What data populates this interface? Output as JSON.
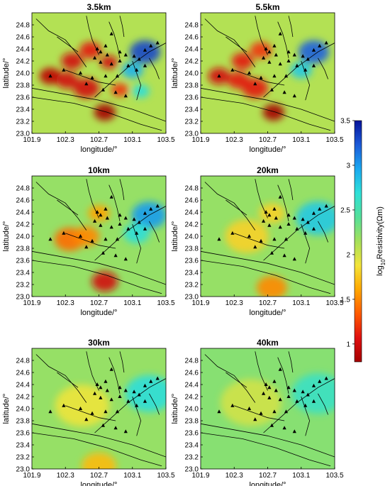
{
  "colormap": {
    "stops": [
      "#a50000",
      "#e01010",
      "#ff5a00",
      "#ffa700",
      "#f3e43a",
      "#a5e05a",
      "#55e09a",
      "#2ee0d8",
      "#1aa8f0",
      "#1c5ad8",
      "#06139a"
    ],
    "station_color": "#000000",
    "fault_color": "#000000"
  },
  "chart_data": [
    {
      "type": "heatmap",
      "title": "3.5km",
      "xlabel": "longitude/°",
      "ylabel": "latitude/°",
      "xlim": [
        101.9,
        103.5
      ],
      "ylim": [
        23.0,
        25.0
      ],
      "xticks": [
        "101.9",
        "102.3",
        "102.7",
        "103.1",
        "103.5"
      ],
      "yticks": [
        "23.0",
        "23.2",
        "23.4",
        "23.6",
        "23.8",
        "24.0",
        "24.2",
        "24.4",
        "24.6",
        "24.8"
      ],
      "background_value": 2.1,
      "anomalies": [
        {
          "lon": 102.12,
          "lat": 23.95,
          "value": 0.9,
          "radius": 0.1
        },
        {
          "lon": 102.32,
          "lat": 23.88,
          "value": 1.0,
          "radius": 0.1
        },
        {
          "lon": 102.55,
          "lat": 23.75,
          "value": 1.0,
          "radius": 0.12
        },
        {
          "lon": 102.38,
          "lat": 24.2,
          "value": 1.0,
          "radius": 0.1
        },
        {
          "lon": 102.6,
          "lat": 24.38,
          "value": 1.1,
          "radius": 0.1
        },
        {
          "lon": 102.82,
          "lat": 24.18,
          "value": 1.0,
          "radius": 0.08
        },
        {
          "lon": 102.77,
          "lat": 23.35,
          "value": 0.7,
          "radius": 0.1
        },
        {
          "lon": 102.95,
          "lat": 23.72,
          "value": 1.2,
          "radius": 0.08
        },
        {
          "lon": 103.25,
          "lat": 24.35,
          "value": 3.3,
          "radius": 0.14
        },
        {
          "lon": 103.1,
          "lat": 24.05,
          "value": 2.9,
          "radius": 0.1
        },
        {
          "lon": 103.2,
          "lat": 23.7,
          "value": 2.7,
          "radius": 0.08
        }
      ],
      "stations": [
        [
          102.85,
          24.65
        ],
        [
          102.78,
          24.45
        ],
        [
          102.68,
          24.4
        ],
        [
          102.72,
          24.35
        ],
        [
          102.8,
          24.3
        ],
        [
          102.95,
          24.35
        ],
        [
          103.02,
          24.3
        ],
        [
          103.12,
          24.28
        ],
        [
          103.18,
          24.23
        ],
        [
          103.25,
          24.38
        ],
        [
          103.32,
          24.45
        ],
        [
          103.4,
          24.5
        ],
        [
          102.65,
          24.25
        ],
        [
          102.72,
          24.18
        ],
        [
          102.85,
          24.15
        ],
        [
          102.95,
          24.2
        ],
        [
          103.05,
          24.12
        ],
        [
          103.15,
          24.05
        ],
        [
          103.25,
          24.12
        ],
        [
          102.28,
          24.05
        ],
        [
          102.12,
          23.95
        ],
        [
          102.48,
          24.0
        ],
        [
          102.62,
          23.92
        ],
        [
          102.78,
          23.95
        ],
        [
          102.92,
          23.95
        ],
        [
          102.55,
          23.82
        ],
        [
          102.75,
          23.72
        ],
        [
          102.9,
          23.68
        ],
        [
          103.02,
          23.62
        ]
      ]
    },
    {
      "type": "heatmap",
      "title": "5.5km",
      "xlabel": "longitude/°",
      "ylabel": "latitude/°",
      "xlim": [
        101.9,
        103.5
      ],
      "ylim": [
        23.0,
        25.0
      ],
      "xticks": [
        "101.9",
        "102.3",
        "102.7",
        "103.1",
        "103.5"
      ],
      "yticks": [
        "23.0",
        "23.2",
        "23.4",
        "23.6",
        "23.8",
        "24.0",
        "24.2",
        "24.4",
        "24.6",
        "24.8"
      ],
      "background_value": 2.1,
      "anomalies": [
        {
          "lon": 102.12,
          "lat": 23.95,
          "value": 1.0,
          "radius": 0.1
        },
        {
          "lon": 102.35,
          "lat": 23.88,
          "value": 1.1,
          "radius": 0.1
        },
        {
          "lon": 102.55,
          "lat": 23.75,
          "value": 1.1,
          "radius": 0.12
        },
        {
          "lon": 102.4,
          "lat": 24.2,
          "value": 1.1,
          "radius": 0.1
        },
        {
          "lon": 102.62,
          "lat": 24.38,
          "value": 1.2,
          "radius": 0.1
        },
        {
          "lon": 102.77,
          "lat": 23.35,
          "value": 0.8,
          "radius": 0.1
        },
        {
          "lon": 103.25,
          "lat": 24.35,
          "value": 3.2,
          "radius": 0.14
        },
        {
          "lon": 103.1,
          "lat": 24.05,
          "value": 2.8,
          "radius": 0.1
        }
      ],
      "stations": [
        [
          102.85,
          24.65
        ],
        [
          102.78,
          24.45
        ],
        [
          102.68,
          24.4
        ],
        [
          102.72,
          24.35
        ],
        [
          102.8,
          24.3
        ],
        [
          102.95,
          24.35
        ],
        [
          103.02,
          24.3
        ],
        [
          103.12,
          24.28
        ],
        [
          103.18,
          24.23
        ],
        [
          103.25,
          24.38
        ],
        [
          103.32,
          24.45
        ],
        [
          103.4,
          24.5
        ],
        [
          102.65,
          24.25
        ],
        [
          102.72,
          24.18
        ],
        [
          102.85,
          24.15
        ],
        [
          102.95,
          24.2
        ],
        [
          103.05,
          24.12
        ],
        [
          103.15,
          24.05
        ],
        [
          103.25,
          24.12
        ],
        [
          102.28,
          24.05
        ],
        [
          102.12,
          23.95
        ],
        [
          102.48,
          24.0
        ],
        [
          102.62,
          23.92
        ],
        [
          102.78,
          23.95
        ],
        [
          102.92,
          23.95
        ],
        [
          102.55,
          23.82
        ],
        [
          102.75,
          23.72
        ],
        [
          102.9,
          23.68
        ],
        [
          103.02,
          23.62
        ]
      ]
    },
    {
      "type": "heatmap",
      "title": "10km",
      "xlabel": "longitude/°",
      "ylabel": "latitude/°",
      "xlim": [
        101.9,
        103.5
      ],
      "ylim": [
        23.0,
        25.0
      ],
      "xticks": [
        "101.9",
        "102.3",
        "102.7",
        "103.1",
        "103.5"
      ],
      "yticks": [
        "23.0",
        "23.2",
        "23.4",
        "23.6",
        "23.8",
        "24.0",
        "24.2",
        "24.4",
        "24.6",
        "24.8"
      ],
      "background_value": 2.2,
      "anomalies": [
        {
          "lon": 102.35,
          "lat": 23.95,
          "value": 1.4,
          "radius": 0.14
        },
        {
          "lon": 102.55,
          "lat": 24.0,
          "value": 1.5,
          "radius": 0.12
        },
        {
          "lon": 102.7,
          "lat": 24.38,
          "value": 1.6,
          "radius": 0.1
        },
        {
          "lon": 102.77,
          "lat": 23.25,
          "value": 1.0,
          "radius": 0.12
        },
        {
          "lon": 103.3,
          "lat": 24.35,
          "value": 3.0,
          "radius": 0.16
        },
        {
          "lon": 103.15,
          "lat": 24.05,
          "value": 2.7,
          "radius": 0.12
        }
      ],
      "stations": [
        [
          102.85,
          24.65
        ],
        [
          102.78,
          24.45
        ],
        [
          102.68,
          24.4
        ],
        [
          102.72,
          24.35
        ],
        [
          102.8,
          24.3
        ],
        [
          102.95,
          24.35
        ],
        [
          103.02,
          24.3
        ],
        [
          103.12,
          24.28
        ],
        [
          103.18,
          24.23
        ],
        [
          103.25,
          24.38
        ],
        [
          103.32,
          24.45
        ],
        [
          103.4,
          24.5
        ],
        [
          102.65,
          24.25
        ],
        [
          102.72,
          24.18
        ],
        [
          102.85,
          24.15
        ],
        [
          102.95,
          24.2
        ],
        [
          103.05,
          24.12
        ],
        [
          103.15,
          24.05
        ],
        [
          103.25,
          24.12
        ],
        [
          102.28,
          24.05
        ],
        [
          102.12,
          23.95
        ],
        [
          102.48,
          24.0
        ],
        [
          102.62,
          23.92
        ],
        [
          102.78,
          23.95
        ],
        [
          102.92,
          23.95
        ],
        [
          102.55,
          23.82
        ],
        [
          102.75,
          23.72
        ],
        [
          102.9,
          23.68
        ],
        [
          103.02,
          23.62
        ]
      ]
    },
    {
      "type": "heatmap",
      "title": "20km",
      "xlabel": "longitude/°",
      "ylabel": "latitude/°",
      "xlim": [
        101.9,
        103.5
      ],
      "ylim": [
        23.0,
        25.0
      ],
      "xticks": [
        "101.9",
        "102.3",
        "102.7",
        "103.1",
        "103.5"
      ],
      "yticks": [
        "23.0",
        "23.2",
        "23.4",
        "23.6",
        "23.8",
        "24.0",
        "24.2",
        "24.4",
        "24.6",
        "24.8"
      ],
      "background_value": 2.2,
      "anomalies": [
        {
          "lon": 102.45,
          "lat": 24.0,
          "value": 1.8,
          "radius": 0.2
        },
        {
          "lon": 102.75,
          "lat": 24.38,
          "value": 1.8,
          "radius": 0.12
        },
        {
          "lon": 102.75,
          "lat": 23.15,
          "value": 1.5,
          "radius": 0.14
        },
        {
          "lon": 103.3,
          "lat": 24.3,
          "value": 2.8,
          "radius": 0.2
        }
      ],
      "stations": [
        [
          102.85,
          24.65
        ],
        [
          102.78,
          24.45
        ],
        [
          102.68,
          24.4
        ],
        [
          102.72,
          24.35
        ],
        [
          102.8,
          24.3
        ],
        [
          102.95,
          24.35
        ],
        [
          103.02,
          24.3
        ],
        [
          103.12,
          24.28
        ],
        [
          103.18,
          24.23
        ],
        [
          103.25,
          24.38
        ],
        [
          103.32,
          24.45
        ],
        [
          103.4,
          24.5
        ],
        [
          102.65,
          24.25
        ],
        [
          102.72,
          24.18
        ],
        [
          102.85,
          24.15
        ],
        [
          102.95,
          24.2
        ],
        [
          103.05,
          24.12
        ],
        [
          103.15,
          24.05
        ],
        [
          103.25,
          24.12
        ],
        [
          102.28,
          24.05
        ],
        [
          102.12,
          23.95
        ],
        [
          102.48,
          24.0
        ],
        [
          102.62,
          23.92
        ],
        [
          102.78,
          23.95
        ],
        [
          102.92,
          23.95
        ],
        [
          102.55,
          23.82
        ],
        [
          102.75,
          23.72
        ],
        [
          102.9,
          23.68
        ],
        [
          103.02,
          23.62
        ]
      ]
    },
    {
      "type": "heatmap",
      "title": "30km",
      "xlabel": "longitude/°",
      "ylabel": "latitude/°",
      "xlim": [
        101.9,
        103.5
      ],
      "ylim": [
        23.0,
        25.0
      ],
      "xticks": [
        "101.9",
        "102.3",
        "102.7",
        "103.1",
        "103.5"
      ],
      "yticks": [
        "23.0",
        "23.2",
        "23.4",
        "23.6",
        "23.8",
        "24.0",
        "24.2",
        "24.4",
        "24.6",
        "24.8"
      ],
      "background_value": 2.2,
      "anomalies": [
        {
          "lon": 102.5,
          "lat": 24.05,
          "value": 1.9,
          "radius": 0.25
        },
        {
          "lon": 102.7,
          "lat": 23.05,
          "value": 1.7,
          "radius": 0.16
        },
        {
          "lon": 103.3,
          "lat": 24.25,
          "value": 2.7,
          "radius": 0.22
        }
      ],
      "stations": [
        [
          102.85,
          24.65
        ],
        [
          102.78,
          24.45
        ],
        [
          102.68,
          24.4
        ],
        [
          102.72,
          24.35
        ],
        [
          102.8,
          24.3
        ],
        [
          102.95,
          24.35
        ],
        [
          103.02,
          24.3
        ],
        [
          103.12,
          24.28
        ],
        [
          103.18,
          24.23
        ],
        [
          103.25,
          24.38
        ],
        [
          103.32,
          24.45
        ],
        [
          103.4,
          24.5
        ],
        [
          102.65,
          24.25
        ],
        [
          102.72,
          24.18
        ],
        [
          102.85,
          24.15
        ],
        [
          102.95,
          24.2
        ],
        [
          103.05,
          24.12
        ],
        [
          103.15,
          24.05
        ],
        [
          103.25,
          24.12
        ],
        [
          102.28,
          24.05
        ],
        [
          102.12,
          23.95
        ],
        [
          102.48,
          24.0
        ],
        [
          102.62,
          23.92
        ],
        [
          102.78,
          23.95
        ],
        [
          102.92,
          23.95
        ],
        [
          102.55,
          23.82
        ],
        [
          102.75,
          23.72
        ],
        [
          102.9,
          23.68
        ],
        [
          103.02,
          23.62
        ]
      ]
    },
    {
      "type": "heatmap",
      "title": "40km",
      "xlabel": "longitude/°",
      "ylabel": "latitude/°",
      "xlim": [
        101.9,
        103.5
      ],
      "ylim": [
        23.0,
        25.0
      ],
      "xticks": [
        "101.9",
        "102.3",
        "102.7",
        "103.1",
        "103.5"
      ],
      "yticks": [
        "23.0",
        "23.2",
        "23.4",
        "23.6",
        "23.8",
        "24.0",
        "24.2",
        "24.4",
        "24.6",
        "24.8"
      ],
      "background_value": 2.25,
      "anomalies": [
        {
          "lon": 102.5,
          "lat": 24.1,
          "value": 2.0,
          "radius": 0.28
        },
        {
          "lon": 103.3,
          "lat": 24.25,
          "value": 2.6,
          "radius": 0.24
        }
      ],
      "stations": [
        [
          102.85,
          24.65
        ],
        [
          102.78,
          24.45
        ],
        [
          102.68,
          24.4
        ],
        [
          102.72,
          24.35
        ],
        [
          102.8,
          24.3
        ],
        [
          102.95,
          24.35
        ],
        [
          103.02,
          24.3
        ],
        [
          103.12,
          24.28
        ],
        [
          103.18,
          24.23
        ],
        [
          103.25,
          24.38
        ],
        [
          103.32,
          24.45
        ],
        [
          103.4,
          24.5
        ],
        [
          102.65,
          24.25
        ],
        [
          102.72,
          24.18
        ],
        [
          102.85,
          24.15
        ],
        [
          102.95,
          24.2
        ],
        [
          103.05,
          24.12
        ],
        [
          103.15,
          24.05
        ],
        [
          103.25,
          24.12
        ],
        [
          102.28,
          24.05
        ],
        [
          102.12,
          23.95
        ],
        [
          102.48,
          24.0
        ],
        [
          102.62,
          23.92
        ],
        [
          102.78,
          23.95
        ],
        [
          102.92,
          23.95
        ],
        [
          102.55,
          23.82
        ],
        [
          102.75,
          23.72
        ],
        [
          102.9,
          23.68
        ],
        [
          103.02,
          23.62
        ]
      ]
    }
  ],
  "colorbar": {
    "label_prefix": "log",
    "label_sub": "10",
    "label_suffix": "Resistivity(Ωm)",
    "range": [
      0.8,
      3.5
    ],
    "ticks": [
      "1",
      "1.5",
      "2",
      "2.5",
      "3",
      "3.5"
    ]
  },
  "faults": [
    [
      [
        101.95,
        24.9
      ],
      [
        102.1,
        24.7
      ],
      [
        102.3,
        24.55
      ],
      [
        102.45,
        24.3
      ],
      [
        102.55,
        24.1
      ]
    ],
    [
      [
        101.9,
        23.75
      ],
      [
        102.3,
        23.65
      ],
      [
        102.7,
        23.55
      ],
      [
        103.1,
        23.4
      ],
      [
        103.5,
        23.2
      ]
    ],
    [
      [
        101.9,
        23.6
      ],
      [
        102.4,
        23.5
      ],
      [
        102.8,
        23.35
      ],
      [
        103.2,
        23.15
      ],
      [
        103.45,
        23.05
      ]
    ],
    [
      [
        102.2,
        24.6
      ],
      [
        102.35,
        24.45
      ],
      [
        102.45,
        24.35
      ]
    ],
    [
      [
        102.55,
        24.95
      ],
      [
        102.58,
        24.75
      ],
      [
        102.62,
        24.55
      ],
      [
        102.7,
        24.3
      ]
    ],
    [
      [
        102.82,
        24.85
      ],
      [
        102.88,
        24.65
      ],
      [
        102.92,
        24.45
      ],
      [
        102.95,
        24.25
      ]
    ],
    [
      [
        102.95,
        24.95
      ],
      [
        102.98,
        24.78
      ],
      [
        103.0,
        24.6
      ]
    ],
    [
      [
        102.65,
        23.6
      ],
      [
        102.85,
        23.85
      ],
      [
        103.05,
        24.1
      ],
      [
        103.3,
        24.35
      ],
      [
        103.5,
        24.5
      ]
    ],
    [
      [
        102.3,
        24.05
      ],
      [
        102.5,
        23.95
      ],
      [
        102.7,
        23.85
      ],
      [
        102.9,
        23.8
      ]
    ],
    [
      [
        103.1,
        24.2
      ],
      [
        103.15,
        24.0
      ],
      [
        103.2,
        23.8
      ],
      [
        103.15,
        23.55
      ]
    ],
    [
      [
        103.3,
        24.25
      ],
      [
        103.38,
        24.05
      ],
      [
        103.42,
        23.9
      ]
    ]
  ]
}
